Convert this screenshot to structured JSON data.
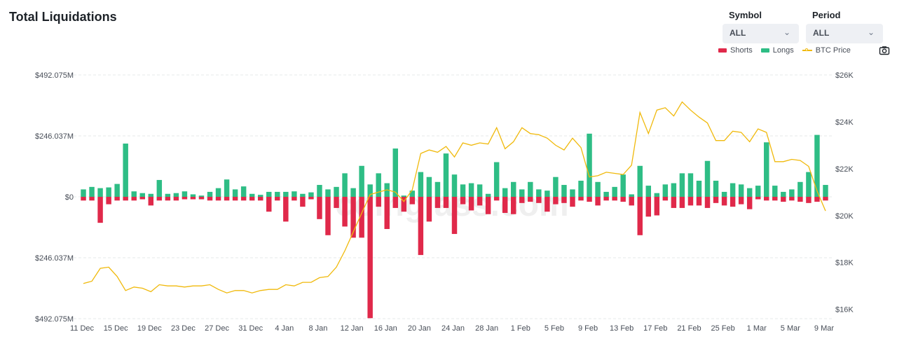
{
  "header": {
    "title": "Total Liquidations"
  },
  "filters": {
    "symbol": {
      "label": "Symbol",
      "value": "ALL"
    },
    "period": {
      "label": "Period",
      "value": "ALL"
    }
  },
  "legend": {
    "shorts": "Shorts",
    "longs": "Longs",
    "btc": "BTC Price"
  },
  "colors": {
    "shorts": "#e0294a",
    "longs": "#2ebd85",
    "btc": "#f0b90b",
    "grid": "#e6e8ea"
  },
  "watermark": "coinglass.com",
  "chart_data": {
    "type": "bar",
    "x_ticks": [
      "11 Dec",
      "15 Dec",
      "19 Dec",
      "23 Dec",
      "27 Dec",
      "31 Dec",
      "4 Jan",
      "8 Jan",
      "12 Jan",
      "16 Jan",
      "20 Jan",
      "24 Jan",
      "28 Jan",
      "1 Feb",
      "5 Feb",
      "9 Feb",
      "13 Feb",
      "17 Feb",
      "21 Feb",
      "25 Feb",
      "1 Mar",
      "5 Mar",
      "9 Mar"
    ],
    "y_left_ticks": [
      "$492.075M",
      "$246.037M",
      "$0",
      "$246.037M",
      "$492.075M"
    ],
    "y_left_range": [
      -492.075,
      492.075
    ],
    "y_right_ticks": [
      "$26K",
      "$24K",
      "$22K",
      "$20K",
      "$18K",
      "$16K"
    ],
    "y_right_range": [
      15600,
      26000
    ],
    "grid": true,
    "legend_position": "top-right",
    "series": [
      {
        "name": "Longs",
        "color": "#2ebd85",
        "values": [
          30,
          40,
          35,
          38,
          52,
          215,
          22,
          15,
          12,
          68,
          12,
          15,
          22,
          10,
          5,
          20,
          35,
          70,
          30,
          42,
          12,
          8,
          20,
          20,
          20,
          22,
          12,
          18,
          48,
          30,
          40,
          95,
          35,
          125,
          50,
          95,
          55,
          195,
          5,
          25,
          100,
          80,
          60,
          175,
          90,
          50,
          55,
          50,
          12,
          140,
          35,
          60,
          30,
          60,
          30,
          25,
          80,
          48,
          30,
          65,
          255,
          60,
          20,
          40,
          90,
          10,
          125,
          45,
          15,
          50,
          55,
          95,
          95,
          65,
          145,
          65,
          20,
          55,
          50,
          35,
          45,
          220,
          45,
          20,
          30,
          60,
          100,
          250,
          48
        ]
      },
      {
        "name": "Shorts",
        "color": "#e0294a",
        "values": [
          15,
          15,
          105,
          30,
          15,
          15,
          15,
          10,
          35,
          15,
          15,
          15,
          10,
          10,
          10,
          15,
          15,
          15,
          15,
          15,
          15,
          15,
          60,
          15,
          100,
          15,
          40,
          10,
          90,
          155,
          45,
          120,
          165,
          165,
          490,
          40,
          130,
          45,
          60,
          30,
          235,
          100,
          45,
          45,
          150,
          30,
          55,
          35,
          70,
          15,
          65,
          70,
          25,
          20,
          25,
          60,
          30,
          25,
          40,
          15,
          20,
          35,
          15,
          15,
          20,
          35,
          155,
          80,
          75,
          15,
          45,
          45,
          35,
          35,
          45,
          25,
          35,
          40,
          30,
          50,
          10,
          15,
          15,
          20,
          15,
          20,
          25,
          20,
          15
        ]
      },
      {
        "name": "BTC Price",
        "color": "#f0b90b",
        "values": [
          17100,
          17200,
          17750,
          17800,
          17400,
          16800,
          16950,
          16900,
          16750,
          17050,
          17000,
          17000,
          16950,
          17000,
          17000,
          17050,
          16850,
          16700,
          16800,
          16800,
          16700,
          16800,
          16850,
          16850,
          17050,
          17000,
          17150,
          17150,
          17350,
          17400,
          17800,
          18500,
          19300,
          20100,
          20900,
          21000,
          21100,
          21000,
          20600,
          21100,
          22650,
          22800,
          22700,
          22950,
          22500,
          23100,
          23000,
          23100,
          23050,
          23750,
          22850,
          23150,
          23750,
          23500,
          23450,
          23300,
          23000,
          22800,
          23300,
          22900,
          21650,
          21700,
          21850,
          21800,
          21750,
          22150,
          24400,
          23500,
          24500,
          24600,
          24250,
          24850,
          24500,
          24200,
          23950,
          23200,
          23200,
          23600,
          23550,
          23150,
          23700,
          23550,
          22300,
          22300,
          22400,
          22350,
          22100,
          21050,
          20200
        ]
      }
    ]
  }
}
